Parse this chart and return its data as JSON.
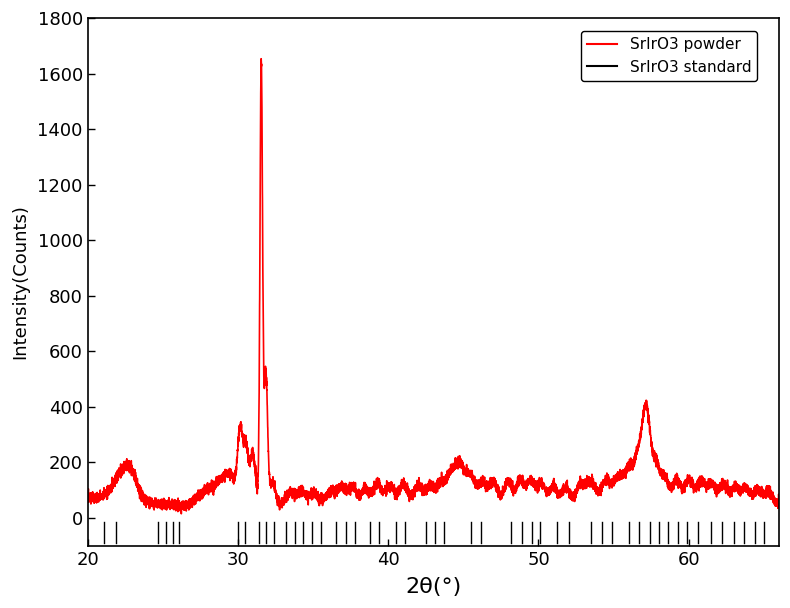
{
  "title": "",
  "xlabel": "2θ(°)",
  "ylabel": "Intensity(Counts)",
  "xlim": [
    20,
    66
  ],
  "ylim": [
    -100,
    1800
  ],
  "yticks": [
    0,
    200,
    400,
    600,
    800,
    1000,
    1200,
    1400,
    1600,
    1800
  ],
  "xticks": [
    20,
    30,
    40,
    50,
    60
  ],
  "legend_labels": [
    "SrIrO3 powder",
    "SrIrO3 standard"
  ],
  "legend_colors": [
    "#ff0000",
    "#000000"
  ],
  "powder_color": "#ff0000",
  "standard_color": "#000000",
  "background_color": "#ffffff",
  "tick_positions": [
    21.1,
    21.9,
    24.7,
    25.2,
    25.7,
    26.1,
    30.0,
    30.5,
    31.4,
    31.9,
    32.4,
    33.2,
    33.8,
    34.3,
    34.9,
    35.5,
    36.5,
    37.2,
    37.8,
    38.8,
    39.4,
    40.5,
    41.1,
    42.5,
    43.1,
    43.7,
    45.5,
    46.2,
    48.2,
    48.9,
    49.6,
    50.1,
    51.2,
    52.0,
    53.5,
    54.2,
    54.9,
    56.0,
    56.7,
    57.4,
    58.0,
    58.6,
    59.3,
    59.9,
    60.6,
    61.5,
    62.2,
    63.0,
    63.7,
    64.4,
    65.0
  ],
  "tick_ymin": -90,
  "tick_ymax": -15,
  "powder_linewidth": 1.2,
  "noise_seed": 17
}
